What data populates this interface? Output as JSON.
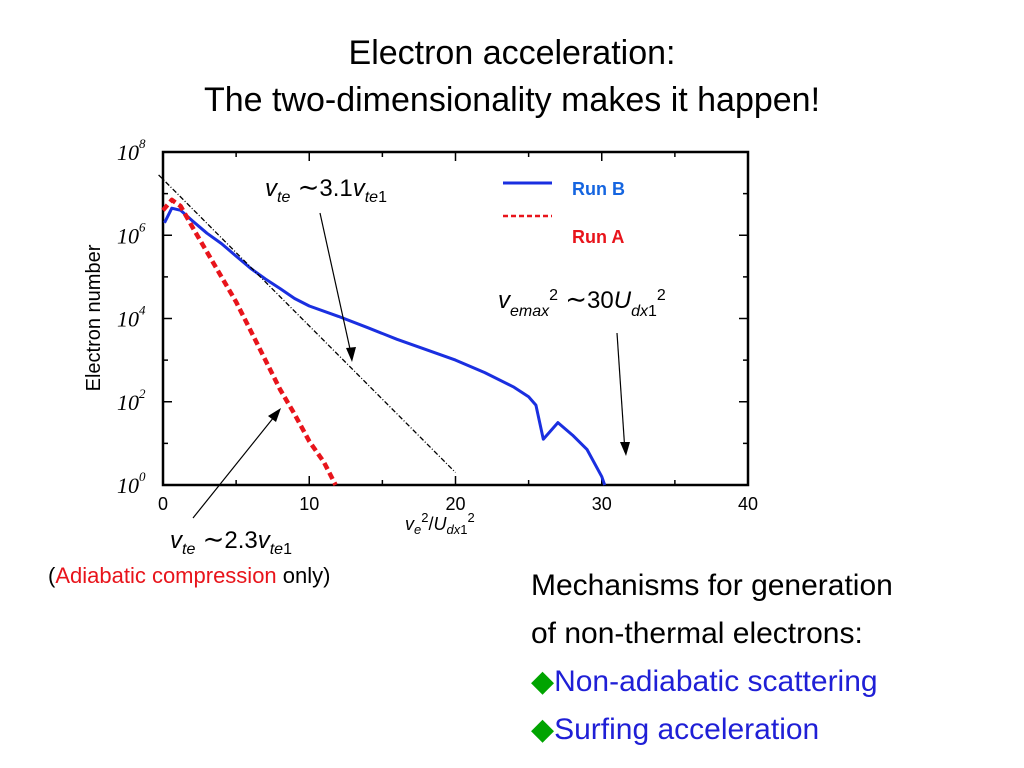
{
  "title": {
    "line1": "Electron acceleration:",
    "line2": "The two-dimensionality makes it happen!"
  },
  "chart_data": {
    "type": "line",
    "xlabel": "ve2/Udx12",
    "ylabel": "Electron number",
    "xlim": [
      0,
      40
    ],
    "ylim_log10": [
      0,
      8
    ],
    "y_scale": "log",
    "x_ticks": [
      "0",
      "10",
      "20",
      "30",
      "40"
    ],
    "y_tick_exponents": [
      "0",
      "2",
      "4",
      "6",
      "8"
    ],
    "y_tick_base": "10",
    "series": [
      {
        "name": "Run B",
        "color": "#1a2fe0",
        "style": "solid",
        "points": [
          [
            0.1,
            6.3
          ],
          [
            0.6,
            6.65
          ],
          [
            1.2,
            6.6
          ],
          [
            2,
            6.35
          ],
          [
            3,
            6.05
          ],
          [
            4,
            5.8
          ],
          [
            5,
            5.5
          ],
          [
            6,
            5.2
          ],
          [
            7,
            4.95
          ],
          [
            8,
            4.72
          ],
          [
            9,
            4.48
          ],
          [
            10,
            4.3
          ],
          [
            12,
            4.05
          ],
          [
            14,
            3.78
          ],
          [
            16,
            3.5
          ],
          [
            18,
            3.25
          ],
          [
            20,
            3.0
          ],
          [
            22,
            2.7
          ],
          [
            24,
            2.35
          ],
          [
            25,
            2.12
          ],
          [
            25.5,
            1.92
          ],
          [
            26,
            1.1
          ],
          [
            27,
            1.5
          ],
          [
            28,
            1.2
          ],
          [
            29,
            0.85
          ],
          [
            30,
            0.2
          ],
          [
            30.2,
            0
          ]
        ]
      },
      {
        "name": "Run A",
        "color": "#e8141b",
        "style": "dashed",
        "points": [
          [
            0,
            6.6
          ],
          [
            0.6,
            6.85
          ],
          [
            1.2,
            6.7
          ],
          [
            2,
            6.2
          ],
          [
            3,
            5.6
          ],
          [
            4,
            5.0
          ],
          [
            5,
            4.4
          ],
          [
            6,
            3.7
          ],
          [
            7,
            3.0
          ],
          [
            8,
            2.3
          ],
          [
            9,
            1.7
          ],
          [
            10,
            1.05
          ],
          [
            11,
            0.55
          ],
          [
            11.8,
            0
          ]
        ]
      },
      {
        "name": "",
        "color": "#000000",
        "style": "dash-dot",
        "points": [
          [
            -0.3,
            7.45
          ],
          [
            20,
            0.3
          ]
        ]
      }
    ],
    "annotations": {
      "vte_b": "3.1",
      "vemax": "30",
      "vte_a": "2.3"
    }
  },
  "notes": {
    "adiabatic_open": "(",
    "adiabatic_label": "Adiabatic compression",
    "adiabatic_rest": " only)"
  },
  "mechanisms": {
    "heading_line1": "Mechanisms for generation",
    "heading_line2": "of non-thermal electrons:",
    "items": [
      "Non-adiabatic scattering",
      "Surfing acceleration"
    ],
    "bullet": "◆"
  },
  "colors": {
    "run_b": "#1a2fe0",
    "run_a": "#e8141b",
    "legend_b_text": "#1565e0",
    "mech_blue": "#1f1fd6",
    "bullet_green": "#00a400"
  }
}
